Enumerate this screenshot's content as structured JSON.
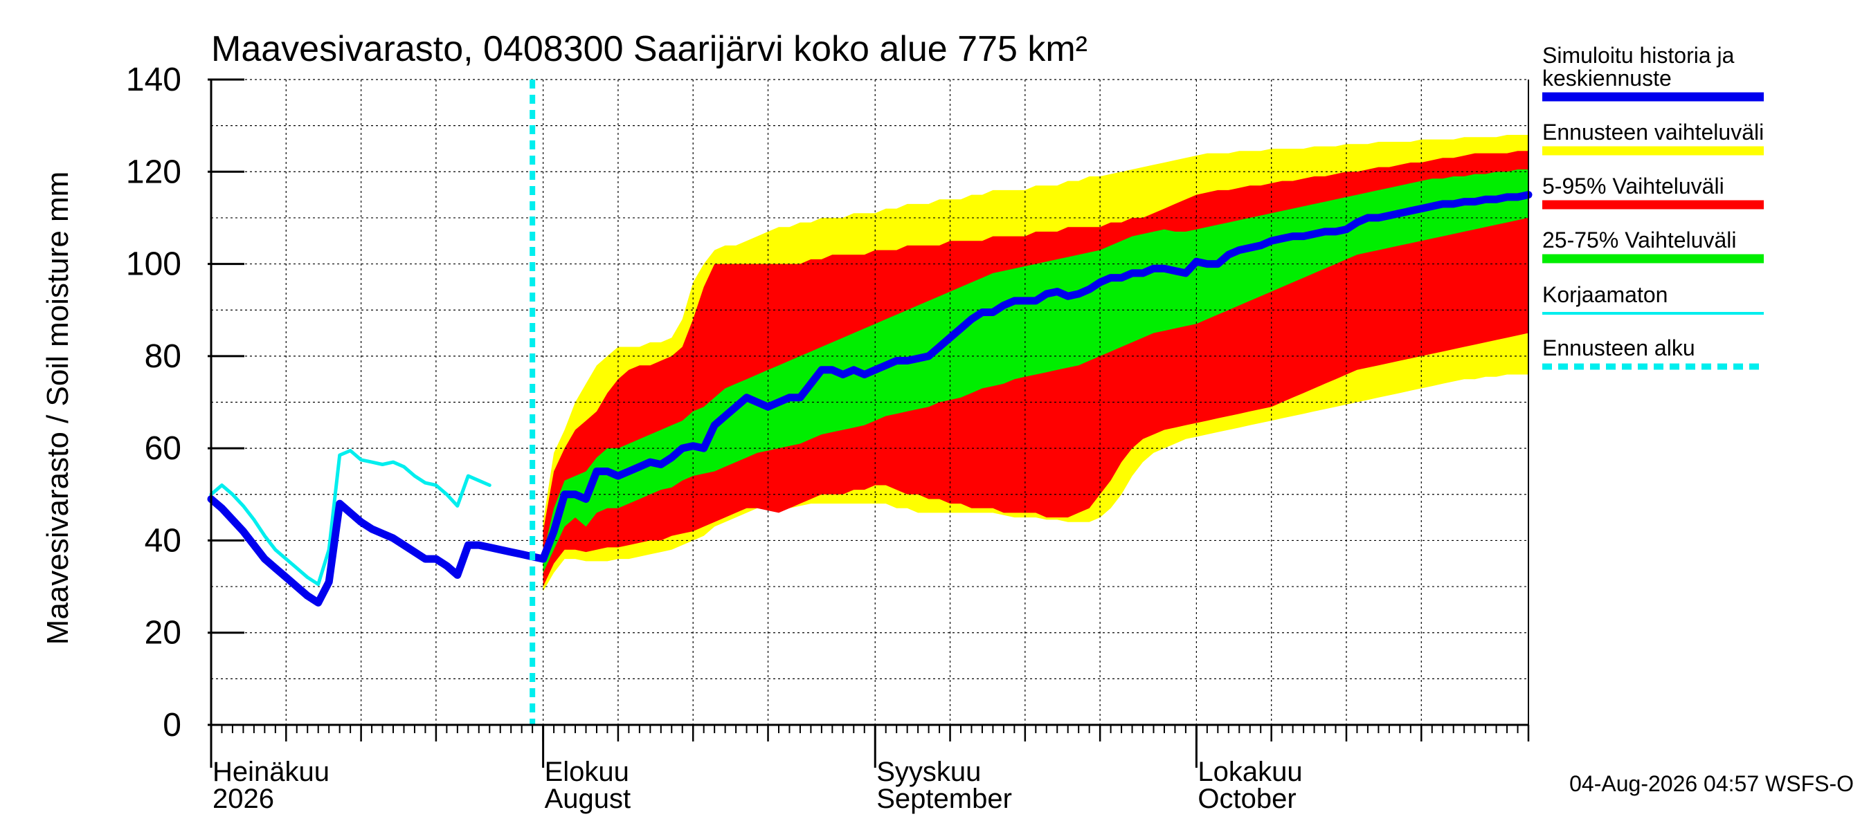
{
  "chart_data": {
    "type": "area",
    "title": "Maavesivarasto, 0408300 Saarijärvi koko alue 775 km²",
    "ylabel": "Maavesivarasto / Soil moisture   mm",
    "ylim": [
      0,
      140
    ],
    "yticks": [
      0,
      20,
      40,
      60,
      80,
      100,
      120,
      140
    ],
    "xlim": [
      "2026-07-01",
      "2026-11-01"
    ],
    "grid": true,
    "legend_position": "right",
    "x_tick_labels": [
      {
        "date": "2026-07-01",
        "line1": "Heinäkuu",
        "line2": "2026"
      },
      {
        "date": "2026-08-01",
        "line1": "Elokuu",
        "line2": "August"
      },
      {
        "date": "2026-09-01",
        "line1": "Syyskuu",
        "line2": "September"
      },
      {
        "date": "2026-10-01",
        "line1": "Lokakuu",
        "line2": "October"
      }
    ],
    "forecast_start": "2026-07-31",
    "timestamp": "04-Aug-2026 04:57 WSFS-O",
    "colors": {
      "simulated": "#0000ee",
      "range_full": "#ffff00",
      "range_5_95": "#ff0000",
      "range_25_75": "#00ee00",
      "uncorrected": "#00eeee",
      "forecast_start": "#00eeee",
      "grid": "#000000"
    },
    "legend": [
      {
        "key": "simulated",
        "label": "Simuloitu historia ja keskiennuste",
        "lines": [
          "Simuloitu historia ja",
          "keskiennuste"
        ],
        "style": "thick"
      },
      {
        "key": "range_full",
        "label": "Ennusteen vaihteluväli",
        "lines": [
          "Ennusteen vaihteluväli"
        ],
        "style": "thick"
      },
      {
        "key": "range_5_95",
        "label": "5-95% Vaihteluväli",
        "lines": [
          "5-95% Vaihteluväli"
        ],
        "style": "thick"
      },
      {
        "key": "range_25_75",
        "label": "25-75% Vaihteluväli",
        "lines": [
          "25-75% Vaihteluväli"
        ],
        "style": "thick"
      },
      {
        "key": "uncorrected",
        "label": "Korjaamaton",
        "lines": [
          "Korjaamaton"
        ],
        "style": "thin"
      },
      {
        "key": "forecast_start",
        "label": "Ennusteen alku",
        "lines": [
          "Ennusteen alku"
        ],
        "style": "dashed"
      }
    ],
    "series": {
      "simulated_history": {
        "name": "Simuloitu historia ja keskiennuste",
        "x": [
          "2026-07-01",
          "2026-07-02",
          "2026-07-03",
          "2026-07-04",
          "2026-07-05",
          "2026-07-06",
          "2026-07-07",
          "2026-07-08",
          "2026-07-09",
          "2026-07-10",
          "2026-07-11",
          "2026-07-12",
          "2026-07-13",
          "2026-07-14",
          "2026-07-15",
          "2026-07-16",
          "2026-07-17",
          "2026-07-18",
          "2026-07-19",
          "2026-07-20",
          "2026-07-21",
          "2026-07-22",
          "2026-07-23",
          "2026-07-24",
          "2026-07-25",
          "2026-07-26",
          "2026-07-27",
          "2026-07-28",
          "2026-07-29",
          "2026-07-30",
          "2026-07-31",
          "2026-08-01"
        ],
        "y": [
          49,
          47,
          44.5,
          42,
          39,
          36,
          34,
          32,
          30,
          28,
          26.5,
          31,
          48,
          46,
          44,
          42.5,
          41.5,
          40.5,
          39,
          37.5,
          36,
          36,
          34.5,
          32.5,
          39,
          39,
          38.5,
          38,
          37.5,
          37,
          36.5,
          36
        ]
      },
      "uncorrected": {
        "name": "Korjaamaton",
        "x": [
          "2026-07-01",
          "2026-07-02",
          "2026-07-03",
          "2026-07-04",
          "2026-07-05",
          "2026-07-06",
          "2026-07-07",
          "2026-07-08",
          "2026-07-09",
          "2026-07-10",
          "2026-07-11",
          "2026-07-12",
          "2026-07-13",
          "2026-07-14",
          "2026-07-15",
          "2026-07-16",
          "2026-07-17",
          "2026-07-18",
          "2026-07-19",
          "2026-07-20",
          "2026-07-21",
          "2026-07-22",
          "2026-07-23",
          "2026-07-24",
          "2026-07-25",
          "2026-07-26",
          "2026-07-27"
        ],
        "y": [
          50,
          52,
          50,
          47.5,
          44.5,
          41,
          38,
          36,
          34,
          32,
          30.5,
          38,
          58.5,
          59.5,
          57.5,
          57,
          56.5,
          57,
          56,
          54,
          52.5,
          52,
          50,
          47.5,
          54,
          53,
          52
        ]
      },
      "forecast": {
        "x": [
          "2026-08-01",
          "2026-08-02",
          "2026-08-03",
          "2026-08-04",
          "2026-08-05",
          "2026-08-06",
          "2026-08-07",
          "2026-08-08",
          "2026-08-09",
          "2026-08-10",
          "2026-08-11",
          "2026-08-12",
          "2026-08-13",
          "2026-08-14",
          "2026-08-15",
          "2026-08-16",
          "2026-08-17",
          "2026-08-18",
          "2026-08-19",
          "2026-08-20",
          "2026-08-21",
          "2026-08-22",
          "2026-08-23",
          "2026-08-24",
          "2026-08-25",
          "2026-08-26",
          "2026-08-27",
          "2026-08-28",
          "2026-08-29",
          "2026-08-30",
          "2026-08-31",
          "2026-09-01",
          "2026-09-02",
          "2026-09-03",
          "2026-09-04",
          "2026-09-05",
          "2026-09-06",
          "2026-09-07",
          "2026-09-08",
          "2026-09-09",
          "2026-09-10",
          "2026-09-11",
          "2026-09-12",
          "2026-09-13",
          "2026-09-14",
          "2026-09-15",
          "2026-09-16",
          "2026-09-17",
          "2026-09-18",
          "2026-09-19",
          "2026-09-20",
          "2026-09-21",
          "2026-09-22",
          "2026-09-23",
          "2026-09-24",
          "2026-09-25",
          "2026-09-26",
          "2026-09-27",
          "2026-09-28",
          "2026-09-29",
          "2026-09-30",
          "2026-10-01",
          "2026-10-02",
          "2026-10-03",
          "2026-10-04",
          "2026-10-05",
          "2026-10-06",
          "2026-10-07",
          "2026-10-08",
          "2026-10-09",
          "2026-10-10",
          "2026-10-11",
          "2026-10-12",
          "2026-10-13",
          "2026-10-14",
          "2026-10-15",
          "2026-10-16",
          "2026-10-17",
          "2026-10-18",
          "2026-10-19",
          "2026-10-20",
          "2026-10-21",
          "2026-10-22",
          "2026-10-23",
          "2026-10-24",
          "2026-10-25",
          "2026-10-26",
          "2026-10-27",
          "2026-10-28",
          "2026-10-29",
          "2026-10-30",
          "2026-10-31",
          "2026-11-01"
        ],
        "median": [
          36,
          42,
          50,
          50,
          49,
          55,
          55,
          54,
          55,
          56,
          57,
          56.5,
          58,
          60,
          60.5,
          60,
          65,
          67,
          69,
          71,
          70,
          69,
          70,
          71,
          71,
          74,
          77,
          77,
          76,
          77,
          76,
          77,
          78,
          79,
          79,
          79.5,
          80,
          82,
          84,
          86,
          88,
          89.5,
          89.5,
          91,
          92,
          92,
          92,
          93.5,
          94,
          93,
          93.5,
          94.5,
          96,
          97,
          97,
          98,
          98,
          99,
          99,
          98.5,
          98,
          100.5,
          100,
          100,
          102,
          103,
          103.5,
          104,
          105,
          105.5,
          106,
          106,
          106.5,
          107,
          107,
          107.5,
          109,
          110,
          110,
          110.5,
          111,
          111.5,
          112,
          112.5,
          113,
          113,
          113.5,
          113.5,
          114,
          114,
          114.5,
          114.5,
          115
        ],
        "p25": [
          33,
          38,
          43,
          45,
          43,
          46,
          47,
          47,
          48,
          49,
          50,
          51,
          51.5,
          53,
          54,
          54.5,
          55,
          56,
          57,
          58,
          59,
          59.5,
          60,
          60.5,
          61,
          62,
          63,
          63.5,
          64,
          64.5,
          65,
          66,
          67,
          67.5,
          68,
          68.5,
          69,
          70,
          70.5,
          71,
          72,
          73,
          73.5,
          74,
          75,
          75.5,
          76,
          76.5,
          77,
          77.5,
          78,
          79,
          80,
          81,
          82,
          83,
          84,
          85,
          85.5,
          86,
          86.5,
          87,
          88,
          89,
          90,
          91,
          92,
          93,
          94,
          95,
          96,
          97,
          98,
          99,
          100,
          101,
          102,
          102.5,
          103,
          103.5,
          104,
          104.5,
          105,
          105.5,
          106,
          106.5,
          107,
          107.5,
          108,
          108.5,
          109,
          109.5,
          110
        ],
        "p75": [
          37,
          47,
          53,
          54,
          55,
          58,
          60,
          60,
          61,
          62,
          63,
          64,
          65,
          66,
          68,
          69,
          71,
          73,
          74,
          75,
          76,
          77,
          78,
          79,
          80,
          81,
          82,
          83,
          84,
          85,
          86,
          87,
          88,
          89,
          90,
          91,
          92,
          93,
          94,
          95,
          96,
          97,
          98,
          98.5,
          99,
          99.5,
          100,
          100.5,
          101,
          101.5,
          102,
          102.5,
          103,
          104,
          105,
          106,
          106.5,
          107,
          107.5,
          107,
          107,
          107.5,
          108,
          108.5,
          109,
          109.5,
          110,
          110.5,
          111,
          111.5,
          112,
          112.5,
          113,
          113.5,
          114,
          114.5,
          115,
          115.5,
          116,
          116.5,
          117,
          117.5,
          118,
          118.5,
          118.5,
          119,
          119,
          119.5,
          119.5,
          120,
          120,
          120.5,
          120.5
        ],
        "p5": [
          30,
          35,
          38,
          38,
          37.5,
          38,
          38.5,
          38.5,
          39,
          39.5,
          40,
          40,
          41,
          41.5,
          42,
          43,
          44,
          45,
          46,
          47,
          47,
          46.5,
          46,
          47,
          48,
          49,
          50,
          50,
          50,
          51,
          51,
          52,
          52,
          51,
          50,
          50,
          49,
          49,
          48,
          48,
          47,
          47,
          47,
          46,
          46,
          46,
          46,
          45,
          45,
          45,
          46,
          47,
          50,
          53,
          57,
          60,
          62,
          63,
          64,
          64.5,
          65,
          65.5,
          66,
          66.5,
          67,
          67.5,
          68,
          68.5,
          69,
          70,
          71,
          72,
          73,
          74,
          75,
          76,
          77,
          77.5,
          78,
          78.5,
          79,
          79.5,
          80,
          80.5,
          81,
          81.5,
          82,
          82.5,
          83,
          83.5,
          84,
          84.5,
          85
        ],
        "p95": [
          42,
          55,
          60,
          64,
          66,
          68,
          72,
          75,
          77,
          78,
          78,
          79,
          80,
          82,
          88,
          95,
          100,
          100,
          100,
          100,
          100,
          100,
          100,
          100,
          100,
          101,
          101,
          102,
          102,
          102,
          102,
          103,
          103,
          103,
          104,
          104,
          104,
          104,
          105,
          105,
          105,
          105,
          106,
          106,
          106,
          106,
          107,
          107,
          107,
          108,
          108,
          108,
          108,
          109,
          109,
          110,
          110,
          111,
          112,
          113,
          114,
          115,
          115.5,
          116,
          116,
          116.5,
          117,
          117,
          117.5,
          118,
          118,
          118.5,
          119,
          119,
          119.5,
          120,
          120,
          120.5,
          121,
          121,
          121.5,
          122,
          122,
          122.5,
          123,
          123,
          123.5,
          124,
          124,
          124,
          124,
          124.5,
          124.5
        ],
        "min": [
          29,
          33,
          36,
          36,
          35.5,
          35.5,
          35.5,
          36,
          36,
          36.5,
          37,
          37.5,
          38,
          39,
          40,
          41,
          43,
          44,
          45,
          46,
          47,
          47,
          47,
          47,
          47.5,
          48,
          48,
          48,
          48,
          48,
          48,
          48,
          48,
          47,
          47,
          46,
          46,
          46,
          46,
          46,
          46,
          46,
          46,
          45.5,
          45,
          45,
          45,
          44.5,
          44.5,
          44,
          44,
          44,
          45,
          47,
          50,
          54,
          57,
          59,
          60,
          61,
          62,
          62.5,
          63,
          63.5,
          64,
          64.5,
          65,
          65.5,
          66,
          66.5,
          67,
          67.5,
          68,
          68.5,
          69,
          69.5,
          70,
          70.5,
          71,
          71.5,
          72,
          72.5,
          73,
          73.5,
          74,
          74.5,
          75,
          75,
          75.5,
          75.5,
          76,
          76,
          76
        ],
        "max": [
          44,
          59,
          64,
          70,
          74,
          78,
          80,
          82,
          82,
          82,
          83,
          83,
          84,
          88,
          96,
          100,
          103,
          104,
          104,
          105,
          106,
          107,
          108,
          108,
          109,
          109,
          110,
          110,
          110,
          111,
          111,
          111,
          112,
          112,
          113,
          113,
          113,
          114,
          114,
          114,
          115,
          115,
          116,
          116,
          116,
          116,
          117,
          117,
          117,
          118,
          118,
          119,
          119,
          119.5,
          120,
          120.5,
          121,
          121.5,
          122,
          122.5,
          123,
          123.5,
          124,
          124,
          124,
          124.5,
          124.5,
          124.5,
          125,
          125,
          125,
          125,
          125.5,
          125.5,
          125.5,
          126,
          126,
          126,
          126.5,
          126.5,
          126.5,
          126.5,
          127,
          127,
          127,
          127,
          127.5,
          127.5,
          127.5,
          127.5,
          128,
          128,
          128
        ]
      }
    }
  }
}
